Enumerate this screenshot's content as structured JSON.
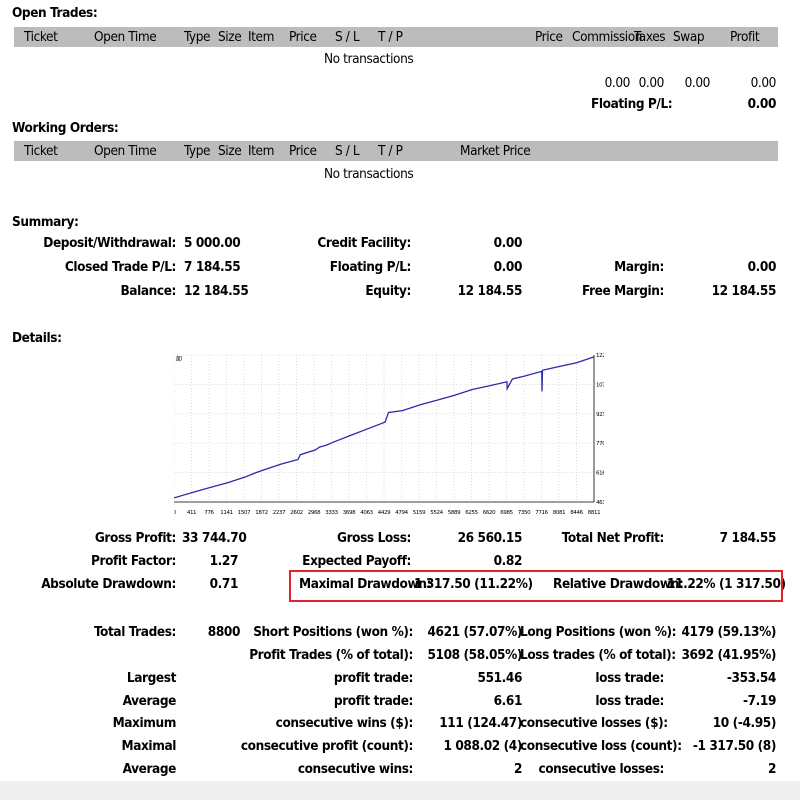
{
  "open_trades": {
    "title": "Open Trades:",
    "columns": [
      "Ticket",
      "Open Time",
      "Type",
      "Size",
      "Item",
      "Price",
      "S / L",
      "T / P",
      "Price",
      "Commission",
      "Taxes",
      "Swap",
      "Profit"
    ],
    "empty_text": "No transactions",
    "totals": {
      "commission": "0.00",
      "taxes": "0.00",
      "swap": "0.00",
      "profit": "0.00"
    },
    "floating_label": "Floating P/L:",
    "floating_value": "0.00"
  },
  "working_orders": {
    "title": "Working Orders:",
    "columns": [
      "Ticket",
      "Open Time",
      "Type",
      "Size",
      "Item",
      "Price",
      "S / L",
      "T / P",
      "Market Price"
    ],
    "empty_text": "No transactions"
  },
  "summary": {
    "title": "Summary:",
    "deposit_label": "Deposit/Withdrawal:",
    "deposit_value": "5 000.00",
    "credit_label": "Credit Facility:",
    "credit_value": "0.00",
    "closed_label": "Closed Trade P/L:",
    "closed_value": "7 184.55",
    "floating_label": "Floating P/L:",
    "floating_value": "0.00",
    "margin_label": "Margin:",
    "margin_value": "0.00",
    "balance_label": "Balance:",
    "balance_value": "12 184.55",
    "equity_label": "Equity:",
    "equity_value": "12 184.55",
    "free_margin_label": "Free Margin:",
    "free_margin_value": "12 184.55"
  },
  "details": {
    "title": "Details:",
    "gross_profit_label": "Gross Profit:",
    "gross_profit_value": "33 744.70",
    "gross_loss_label": "Gross Loss:",
    "gross_loss_value": "26 560.15",
    "total_net_profit_label": "Total Net Profit:",
    "total_net_profit_value": "7 184.55",
    "profit_factor_label": "Profit Factor:",
    "profit_factor_value": "1.27",
    "expected_payoff_label": "Expected Payoff:",
    "expected_payoff_value": "0.82",
    "absolute_drawdown_label": "Absolute Drawdown:",
    "absolute_drawdown_value": "0.71",
    "maximal_drawdown_label": "Maximal Drawdown:",
    "maximal_drawdown_value": "1 317.50 (11.22%)",
    "relative_drawdown_label": "Relative Drawdown:",
    "relative_drawdown_value": "11.22% (1 317.50)",
    "total_trades_label": "Total Trades:",
    "total_trades_value": "8800",
    "short_label": "Short Positions (won %):",
    "short_value": "4621 (57.07%)",
    "long_label": "Long Positions (won %):",
    "long_value": "4179 (59.13%)",
    "profit_trades_label": "Profit Trades (% of total):",
    "profit_trades_value": "5108 (58.05%)",
    "loss_trades_label": "Loss trades (% of total):",
    "loss_trades_value": "3692 (41.95%)",
    "rows": [
      {
        "left": "Largest",
        "mid": "profit trade:",
        "mid_val": "551.46",
        "right": "loss trade:",
        "right_val": "-353.54"
      },
      {
        "left": "Average",
        "mid": "profit trade:",
        "mid_val": "6.61",
        "right": "loss trade:",
        "right_val": "-7.19"
      },
      {
        "left": "Maximum",
        "mid": "consecutive wins ($):",
        "mid_val": "111 (124.47)",
        "right": "consecutive losses ($):",
        "right_val": "10 (-4.95)"
      },
      {
        "left": "Maximal",
        "mid": "consecutive profit (count):",
        "mid_val": "1 088.02 (4)",
        "right": "consecutive loss (count):",
        "right_val": "-1 317.50 (8)"
      },
      {
        "left": "Average",
        "mid": "consecutive wins:",
        "mid_val": "2",
        "right": "consecutive losses:",
        "right_val": "2"
      }
    ]
  },
  "chart_data": {
    "type": "line",
    "title": "",
    "corner_label": "卹",
    "x_ticks": [
      "0",
      "411",
      "776",
      "1141",
      "1507",
      "1872",
      "2237",
      "2602",
      "2968",
      "3333",
      "3698",
      "4063",
      "4429",
      "4794",
      "5159",
      "5524",
      "5889",
      "6255",
      "6620",
      "6985",
      "7350",
      "7716",
      "8081",
      "8446",
      "8811"
    ],
    "y_ticks": [
      "12299",
      "10766",
      "9234",
      "7701",
      "6169",
      "4636"
    ],
    "ylim": [
      4636,
      12299
    ],
    "xlim": [
      0,
      8811
    ],
    "line_color": "#2b2ba8",
    "series": [
      {
        "x": [
          0,
          411,
          776,
          1141,
          1507,
          1700,
          1872,
          2237,
          2602,
          2650,
          2968,
          3050,
          3200,
          3333,
          3698,
          4063,
          4429,
          4500,
          4794,
          5159,
          5524,
          5889,
          6255,
          6620,
          6985,
          6990,
          7100,
          7350,
          7716,
          7720,
          7730,
          8081,
          8446,
          8811
        ],
        "y": [
          4850,
          5150,
          5400,
          5650,
          5950,
          6150,
          6300,
          6600,
          6850,
          7100,
          7350,
          7500,
          7600,
          7750,
          8100,
          8450,
          8800,
          9300,
          9400,
          9700,
          9950,
          10200,
          10500,
          10700,
          10900,
          10550,
          11050,
          11200,
          11450,
          10400,
          11500,
          11700,
          11900,
          12200
        ]
      }
    ]
  }
}
